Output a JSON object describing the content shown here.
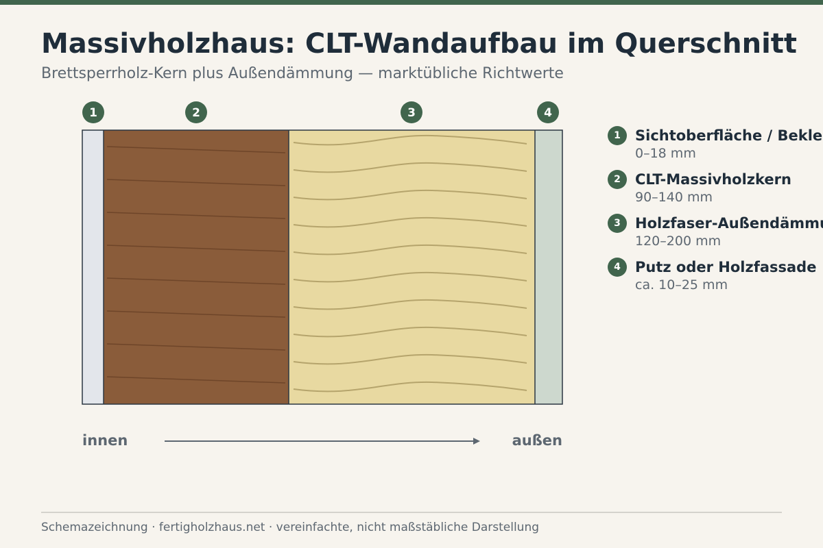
{
  "title": "Massivholzhaus: CLT-Wandaufbau im Querschnitt",
  "subtitle": "Brettsperrholz-Kern plus Außendämmung — marktübliche Richtwerte",
  "colors": {
    "accent": "#41654d",
    "text_dark": "#1f2d3a",
    "text_muted": "#5d6771",
    "background": "#f7f4ee",
    "layer_1": "#e3e6eb",
    "layer_2": "#8a5c3a",
    "layer_3": "#e8d9a1",
    "layer_4": "#cdd8ce"
  },
  "layers": [
    {
      "number": "1",
      "name": "Sichtoberfläche / Bekleidung",
      "thickness": "0–18 mm",
      "pattern": "plain"
    },
    {
      "number": "2",
      "name": "CLT-Massivholzkern",
      "thickness": "90–140 mm",
      "pattern": "wood-grain"
    },
    {
      "number": "3",
      "name": "Holzfaser-Außendämmung",
      "thickness": "120–200 mm",
      "pattern": "fiber-waves"
    },
    {
      "number": "4",
      "name": "Putz oder Holzfassade",
      "thickness": "ca. 10–25 mm",
      "pattern": "plain"
    }
  ],
  "direction": {
    "inside": "innen",
    "outside": "außen",
    "arrow_icon": "arrow-right-icon"
  },
  "footer": "Schemazeichnung · fertigholzhaus.net · vereinfachte, nicht maßstäbliche Darstellung"
}
